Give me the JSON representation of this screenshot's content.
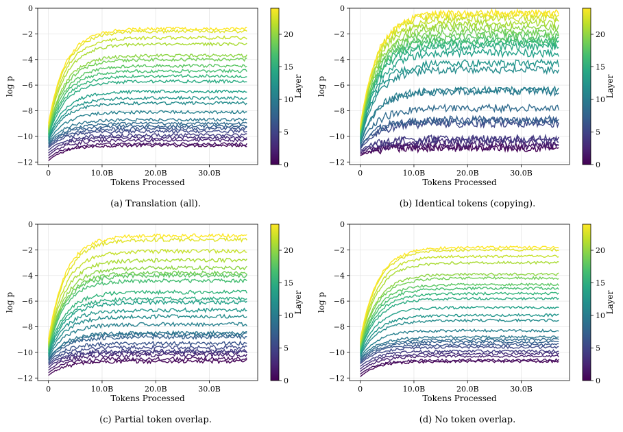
{
  "colormap": [
    "#440154",
    "#482878",
    "#3e4989",
    "#31688e",
    "#26828e",
    "#1f9e89",
    "#35b779",
    "#6ece58",
    "#b5de2b",
    "#fde725"
  ],
  "chart_data": [
    {
      "type": "line",
      "caption": "(a) Translation (all).",
      "xlabel": "Tokens Processed",
      "ylabel": "log p",
      "xlim": [
        -2,
        39
      ],
      "ylim": [
        -12.2,
        0
      ],
      "xticks": [
        0,
        10,
        20,
        30
      ],
      "xtick_labels": [
        "0",
        "10.0B",
        "20.0B",
        "30.0B"
      ],
      "yticks": [
        0,
        -2,
        -4,
        -6,
        -8,
        -10,
        -12
      ],
      "ytick_labels": [
        "0",
        "−2",
        "−4",
        "−6",
        "−8",
        "−10",
        "−12"
      ],
      "grid": true,
      "colorbar": {
        "label": "Layer",
        "min": 0,
        "max": 24,
        "ticks": [
          0,
          5,
          10,
          15,
          20
        ]
      },
      "layer_count": 24,
      "x": [
        0,
        0.5,
        1,
        2,
        3,
        4,
        6,
        8,
        10,
        12,
        14,
        16,
        18,
        20,
        22,
        24,
        26,
        28,
        30,
        32,
        34,
        36,
        37
      ],
      "noise": 0.12,
      "series_final": [
        -10.7,
        -10.6,
        -10.3,
        -10.1,
        -9.9,
        -9.6,
        -9.4,
        -9.2,
        -9.0,
        -8.7,
        -8.1,
        -7.4,
        -7.0,
        -6.5,
        -5.7,
        -5.3,
        -4.9,
        -4.5,
        -4.0,
        -3.7,
        -2.8,
        -2.3,
        -1.8,
        -1.6
      ],
      "series_start": [
        -11.9,
        -11.7,
        -11.5,
        -11.3,
        -11.1,
        -10.9,
        -10.8,
        -10.7,
        -10.6,
        -10.5,
        -10.4,
        -10.3,
        -10.2,
        -10.1,
        -10.0,
        -9.9,
        -9.8,
        -9.7,
        -9.6,
        -9.5,
        -9.4,
        -9.3,
        -9.2,
        -9.0
      ]
    },
    {
      "type": "line",
      "caption": "(b) Identical tokens (copying).",
      "xlabel": "Tokens Processed",
      "ylabel": "log p",
      "xlim": [
        -2,
        39
      ],
      "ylim": [
        -12.2,
        0
      ],
      "xticks": [
        0,
        10,
        20,
        30
      ],
      "xtick_labels": [
        "0",
        "10.0B",
        "20.0B",
        "30.0B"
      ],
      "yticks": [
        0,
        -2,
        -4,
        -6,
        -8,
        -10,
        -12
      ],
      "ytick_labels": [
        "0",
        "−2",
        "−4",
        "−6",
        "−8",
        "−10",
        "−12"
      ],
      "grid": true,
      "colorbar": {
        "label": "Layer",
        "min": 0,
        "max": 24,
        "ticks": [
          0,
          5,
          10,
          15,
          20
        ]
      },
      "layer_count": 24,
      "x": [
        0,
        0.5,
        1,
        2,
        3,
        4,
        6,
        8,
        10,
        12,
        14,
        16,
        18,
        20,
        22,
        24,
        26,
        28,
        30,
        32,
        34,
        36,
        37
      ],
      "noise": 0.3,
      "series_final": [
        -10.9,
        -10.8,
        -10.6,
        -10.3,
        -10.2,
        -9.0,
        -8.8,
        -8.7,
        -7.8,
        -6.5,
        -6.4,
        -4.8,
        -4.3,
        -3.5,
        -3.0,
        -2.7,
        -2.5,
        -2.2,
        -1.9,
        -1.5,
        -1.2,
        -0.8,
        -0.5,
        -0.4
      ],
      "series_start": [
        -11.5,
        -11.4,
        -11.3,
        -11.2,
        -11.1,
        -11.0,
        -10.9,
        -10.8,
        -10.7,
        -10.6,
        -10.5,
        -10.4,
        -10.3,
        -10.2,
        -10.1,
        -10.0,
        -9.9,
        -9.8,
        -9.7,
        -9.6,
        -9.5,
        -9.4,
        -9.3,
        -9.2
      ]
    },
    {
      "type": "line",
      "caption": "(c) Partial token overlap.",
      "xlabel": "Tokens Processed",
      "ylabel": "log p",
      "xlim": [
        -2,
        39
      ],
      "ylim": [
        -12.2,
        0
      ],
      "xticks": [
        0,
        10,
        20,
        30
      ],
      "xtick_labels": [
        "0",
        "10.0B",
        "20.0B",
        "30.0B"
      ],
      "yticks": [
        0,
        -2,
        -4,
        -6,
        -8,
        -10,
        -12
      ],
      "ytick_labels": [
        "0",
        "−2",
        "−4",
        "−6",
        "−8",
        "−10",
        "−12"
      ],
      "grid": true,
      "colorbar": {
        "label": "Layer",
        "min": 0,
        "max": 24,
        "ticks": [
          0,
          5,
          10,
          15,
          20
        ]
      },
      "layer_count": 24,
      "x": [
        0,
        0.5,
        1,
        2,
        3,
        4,
        6,
        8,
        10,
        12,
        14,
        16,
        18,
        20,
        22,
        24,
        26,
        28,
        30,
        32,
        34,
        36,
        37
      ],
      "noise": 0.15,
      "series_final": [
        -10.7,
        -10.5,
        -10.2,
        -10.0,
        -9.9,
        -9.6,
        -9.3,
        -8.8,
        -8.6,
        -8.5,
        -7.8,
        -7.2,
        -6.7,
        -6.1,
        -5.8,
        -5.3,
        -4.4,
        -4.0,
        -3.8,
        -3.4,
        -2.8,
        -2.1,
        -1.2,
        -0.9
      ],
      "series_start": [
        -11.8,
        -11.6,
        -11.4,
        -11.2,
        -11.0,
        -10.9,
        -10.8,
        -10.7,
        -10.6,
        -10.5,
        -10.4,
        -10.3,
        -10.2,
        -10.1,
        -10.0,
        -9.9,
        -9.8,
        -9.7,
        -9.6,
        -9.5,
        -9.4,
        -9.3,
        -9.2,
        -9.0
      ]
    },
    {
      "type": "line",
      "caption": "(d) No token overlap.",
      "xlabel": "Tokens Processed",
      "ylabel": "log p",
      "xlim": [
        -2,
        39
      ],
      "ylim": [
        -12.2,
        0
      ],
      "xticks": [
        0,
        10,
        20,
        30
      ],
      "xtick_labels": [
        "0",
        "10.0B",
        "20.0B",
        "30.0B"
      ],
      "yticks": [
        0,
        -2,
        -4,
        -6,
        -8,
        -10,
        -12
      ],
      "ytick_labels": [
        "0",
        "−2",
        "−4",
        "−6",
        "−8",
        "−10",
        "−12"
      ],
      "grid": true,
      "colorbar": {
        "label": "Layer",
        "min": 0,
        "max": 24,
        "ticks": [
          0,
          5,
          10,
          15,
          20
        ]
      },
      "layer_count": 24,
      "x": [
        0,
        0.5,
        1,
        2,
        3,
        4,
        6,
        8,
        10,
        12,
        14,
        16,
        18,
        20,
        22,
        24,
        26,
        28,
        30,
        32,
        34,
        36,
        37
      ],
      "noise": 0.1,
      "series_final": [
        -10.7,
        -10.6,
        -10.3,
        -10.1,
        -9.9,
        -9.6,
        -9.4,
        -9.2,
        -9.0,
        -8.8,
        -8.3,
        -7.5,
        -7.1,
        -6.5,
        -5.8,
        -5.4,
        -5.0,
        -4.7,
        -4.2,
        -3.9,
        -3.0,
        -2.5,
        -2.0,
        -1.8
      ],
      "series_start": [
        -11.9,
        -11.7,
        -11.5,
        -11.3,
        -11.1,
        -10.9,
        -10.8,
        -10.7,
        -10.6,
        -10.5,
        -10.4,
        -10.3,
        -10.2,
        -10.1,
        -10.0,
        -9.9,
        -9.8,
        -9.7,
        -9.6,
        -9.5,
        -9.4,
        -9.3,
        -9.2,
        -9.0
      ]
    }
  ]
}
